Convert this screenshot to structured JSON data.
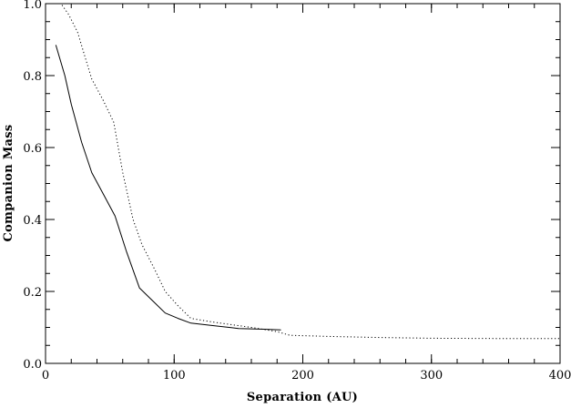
{
  "chart_data": {
    "type": "line",
    "title": "",
    "xlabel": "Separation (AU)",
    "ylabel": "Companion Mass",
    "xlim": [
      0,
      400
    ],
    "ylim": [
      0.0,
      1.0
    ],
    "grid": false,
    "x_ticks": [
      0,
      100,
      200,
      300,
      400
    ],
    "x_tick_labels": [
      "0",
      "100",
      "200",
      "300",
      "400"
    ],
    "x_minor_step": 20,
    "y_ticks": [
      0.0,
      0.2,
      0.4,
      0.6,
      0.8,
      1.0
    ],
    "y_tick_labels": [
      "0.0",
      "0.2",
      "0.4",
      "0.6",
      "0.8",
      "1.0"
    ],
    "y_minor_step": 0.05,
    "series": [
      {
        "style": "solid",
        "color": "#000000",
        "x": [
          8,
          15,
          20,
          28,
          36,
          45,
          54,
          63,
          73,
          83,
          93,
          103,
          113,
          130,
          150,
          170,
          183
        ],
        "y": [
          0.885,
          0.8,
          0.72,
          0.615,
          0.53,
          0.47,
          0.41,
          0.31,
          0.21,
          0.175,
          0.14,
          0.125,
          0.112,
          0.105,
          0.097,
          0.095,
          0.093
        ]
      },
      {
        "style": "dotted",
        "color": "#000000",
        "x": [
          8,
          12,
          18,
          25,
          30,
          36,
          45,
          53,
          60,
          68,
          75,
          85,
          93,
          103,
          113,
          130,
          160,
          180,
          190,
          220,
          260,
          300,
          350,
          400
        ],
        "y": [
          1.0,
          1.0,
          0.97,
          0.92,
          0.86,
          0.79,
          0.73,
          0.67,
          0.53,
          0.4,
          0.33,
          0.26,
          0.2,
          0.16,
          0.125,
          0.115,
          0.1,
          0.088,
          0.078,
          0.075,
          0.072,
          0.07,
          0.069,
          0.069
        ]
      }
    ]
  }
}
